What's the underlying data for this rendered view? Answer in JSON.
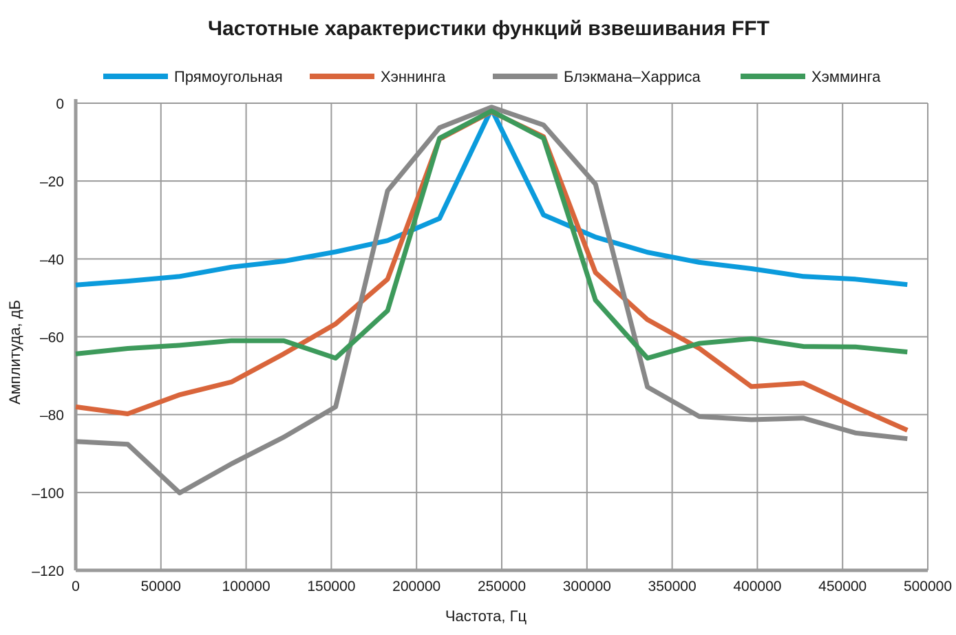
{
  "chart_data": {
    "type": "line",
    "title": "Частотные характеристики функций взвешивания FFT",
    "xlabel": "Частота, Гц",
    "ylabel": "Амплитуда, дБ",
    "xlim": [
      0,
      500000
    ],
    "ylim": [
      -120,
      0
    ],
    "xticks": [
      0,
      50000,
      100000,
      150000,
      200000,
      250000,
      300000,
      350000,
      400000,
      450000,
      500000
    ],
    "xtick_labels": [
      "0",
      "50000",
      "100000",
      "150000",
      "200000",
      "250000",
      "300000",
      "350000",
      "400000",
      "450000",
      "500000"
    ],
    "yticks": [
      0,
      -20,
      -40,
      -60,
      -80,
      -100,
      -120
    ],
    "ytick_labels": [
      "0",
      "–20",
      "–40",
      "–60",
      "–80",
      "–100",
      "–120"
    ],
    "grid": true,
    "legend_position": "top",
    "x": [
      0,
      30500,
      61000,
      91500,
      122000,
      152500,
      183000,
      213500,
      244000,
      274500,
      305000,
      335500,
      366000,
      396500,
      427000,
      457500,
      488000
    ],
    "series": [
      {
        "name": "Прямоугольная",
        "color": "#0b9bdc",
        "values": [
          -46.7,
          -45.7,
          -44.5,
          -42.1,
          -40.6,
          -38.2,
          -35.3,
          -29.6,
          -1.5,
          -28.7,
          -34.4,
          -38.3,
          -40.9,
          -42.5,
          -44.5,
          -45.2,
          -46.6
        ]
      },
      {
        "name": "Хэннинга",
        "color": "#d9653b",
        "values": [
          -78.0,
          -79.8,
          -74.9,
          -71.6,
          -64.4,
          -56.7,
          -45.2,
          -9.2,
          -2.2,
          -8.6,
          -43.5,
          -55.6,
          -63.0,
          -72.8,
          -71.9,
          -78.1,
          -84.0
        ]
      },
      {
        "name": "Блэкмана–Харриса",
        "color": "#888888",
        "values": [
          -86.9,
          -87.6,
          -100.1,
          -92.6,
          -85.8,
          -78.0,
          -22.5,
          -6.3,
          -1.0,
          -5.6,
          -20.8,
          -72.9,
          -80.5,
          -81.3,
          -80.9,
          -84.7,
          -86.2
        ]
      },
      {
        "name": "Хэмминга",
        "color": "#3d9a5b",
        "values": [
          -64.4,
          -63.0,
          -62.2,
          -61.0,
          -61.0,
          -65.5,
          -53.3,
          -9.0,
          -2.0,
          -9.0,
          -50.6,
          -65.5,
          -61.7,
          -60.5,
          -62.5,
          -62.6,
          -63.9
        ]
      }
    ]
  }
}
